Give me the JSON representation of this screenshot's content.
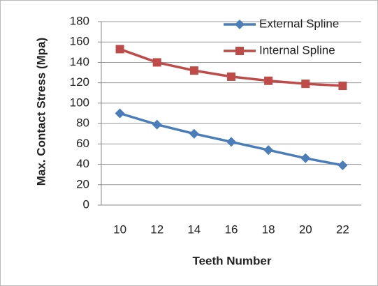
{
  "chart_data": {
    "type": "line",
    "x": [
      10,
      12,
      14,
      16,
      18,
      20,
      22
    ],
    "xlim": [
      9,
      23
    ],
    "xticks": [
      10,
      12,
      14,
      16,
      18,
      20,
      22
    ],
    "ylim": [
      0,
      180
    ],
    "yticks": [
      0,
      20,
      40,
      60,
      80,
      100,
      120,
      140,
      160,
      180
    ],
    "xlabel": "Teeth Number",
    "ylabel": "Max. Contact Stress (Mpa)",
    "grid": true,
    "legend": "upper right",
    "series": [
      {
        "name": "External Spline",
        "color": "#4a7ebb",
        "marker": "diamond",
        "values": [
          90,
          79,
          70,
          62,
          54,
          46,
          39
        ]
      },
      {
        "name": "Internal Spline",
        "color": "#be4b48",
        "marker": "square",
        "values": [
          153,
          140,
          132,
          126,
          122,
          119,
          117
        ]
      }
    ]
  }
}
